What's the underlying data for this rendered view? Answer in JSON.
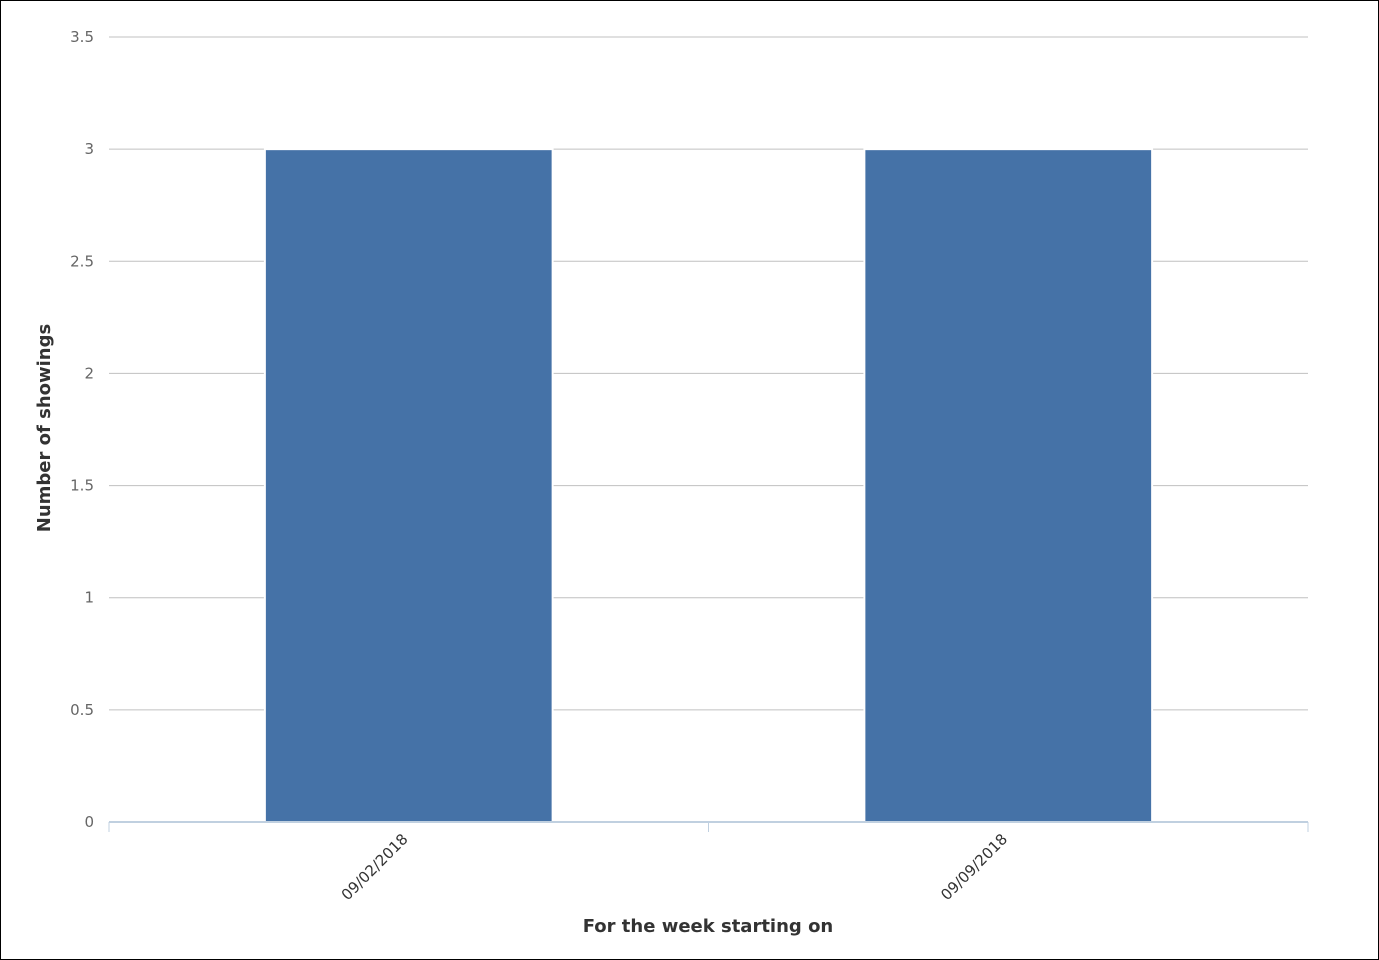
{
  "chart_data": {
    "type": "bar",
    "categories": [
      "09/02/2018",
      "09/09/2018"
    ],
    "values": [
      3,
      3
    ],
    "title": "",
    "xlabel": "For the week starting on",
    "ylabel": "Number of showings",
    "ylim": [
      0,
      3.5
    ],
    "yticks": [
      "0",
      "0.5",
      "1",
      "1.5",
      "2",
      "2.5",
      "3",
      "3.5"
    ],
    "grid": true,
    "legend": "none",
    "colors": {
      "bar": "#4572a7",
      "bar_stroke": "#ffffff",
      "grid": "#c0c0c0",
      "axis": "#c0d0e0",
      "frame": "#000000"
    }
  }
}
